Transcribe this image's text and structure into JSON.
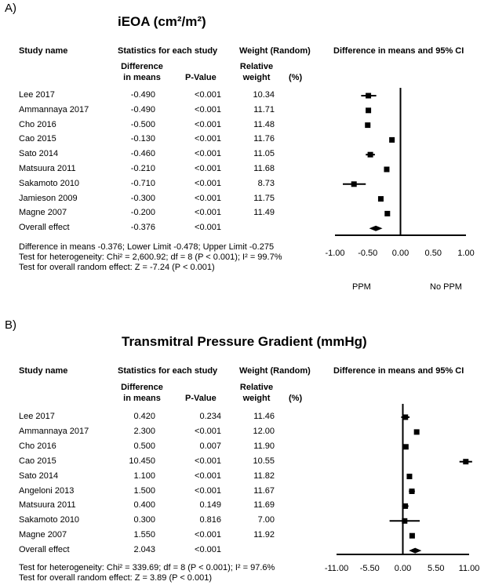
{
  "chart_data": [
    {
      "type": "forest",
      "panel_label": "A)",
      "title": "iEOA (cm²/m²)",
      "headers": {
        "study": "Study name",
        "stats": "Statistics for each study",
        "weight": "Weight (Random)",
        "plot": "Difference in means and 95% CI",
        "diff": "Difference in means",
        "pvalue": "P-Value",
        "relweight": "Relative weight",
        "pct": "(%)"
      },
      "rows": [
        {
          "study": "Lee 2017",
          "diff": "-0.490",
          "p": "<0.001",
          "weight": "10.34",
          "est": -0.49,
          "lo": -0.6,
          "hi": -0.37
        },
        {
          "study": "Ammannaya 2017",
          "diff": "-0.490",
          "p": "<0.001",
          "weight": "11.71",
          "est": -0.49,
          "lo": -0.52,
          "hi": -0.46
        },
        {
          "study": "Cho 2016",
          "diff": "-0.500",
          "p": "<0.001",
          "weight": "11.48",
          "est": -0.5,
          "lo": -0.54,
          "hi": -0.46
        },
        {
          "study": "Cao 2015",
          "diff": "-0.130",
          "p": "<0.001",
          "weight": "11.76",
          "est": -0.13,
          "lo": -0.15,
          "hi": -0.11
        },
        {
          "study": "Sato 2014",
          "diff": "-0.460",
          "p": "<0.001",
          "weight": "11.05",
          "est": -0.46,
          "lo": -0.53,
          "hi": -0.39
        },
        {
          "study": "Matsuura 2011",
          "diff": "-0.210",
          "p": "<0.001",
          "weight": "11.68",
          "est": -0.21,
          "lo": -0.23,
          "hi": -0.19
        },
        {
          "study": "Sakamoto 2010",
          "diff": "-0.710",
          "p": "<0.001",
          "weight": "8.73",
          "est": -0.71,
          "lo": -0.88,
          "hi": -0.53
        },
        {
          "study": "Jamieson 2009",
          "diff": "-0.300",
          "p": "<0.001",
          "weight": "11.75",
          "est": -0.3,
          "lo": -0.32,
          "hi": -0.28
        },
        {
          "study": "Magne 2007",
          "diff": "-0.200",
          "p": "<0.001",
          "weight": "11.49",
          "est": -0.2,
          "lo": -0.23,
          "hi": -0.17
        }
      ],
      "overall": {
        "study": "Overall effect",
        "diff": "-0.376",
        "p": "<0.001",
        "est": -0.376,
        "lo": -0.478,
        "hi": -0.275
      },
      "xlim": [
        -1.0,
        1.0
      ],
      "xticks": [
        "-1.00",
        "-0.50",
        "0.00",
        "0.50",
        "1.00"
      ],
      "xtick_values": [
        -1.0,
        -0.5,
        0.0,
        0.5,
        1.0
      ],
      "favours_left": "PPM",
      "favours_right": "No PPM",
      "footer": [
        "Difference in means -0.376; Lower Limit -0.478; Upper Limit -0.275",
        "Test for heterogeneity: Chi² = 2,600.92; df = 8 (P < 0.001); I² = 99.7%",
        "Test for overall random effect: Z = -7.24 (P < 0.001)"
      ]
    },
    {
      "type": "forest",
      "panel_label": "B)",
      "title": "Transmitral Pressure Gradient (mmHg)",
      "headers": {
        "study": "Study name",
        "stats": "Statistics for each study",
        "weight": "Weight (Random)",
        "plot": "Difference in means and 95% CI",
        "diff": "Difference in means",
        "pvalue": "P-Value",
        "relweight": "Relative weight",
        "pct": "(%)"
      },
      "rows": [
        {
          "study": "Lee 2017",
          "diff": "0.420",
          "p": "0.234",
          "weight": "11.46",
          "est": 0.42,
          "lo": -0.27,
          "hi": 1.11
        },
        {
          "study": "Ammannaya 2017",
          "diff": "2.300",
          "p": "<0.001",
          "weight": "12.00",
          "est": 2.3,
          "lo": 2.1,
          "hi": 2.5
        },
        {
          "study": "Cho 2016",
          "diff": "0.500",
          "p": "0.007",
          "weight": "11.90",
          "est": 0.5,
          "lo": 0.14,
          "hi": 0.86
        },
        {
          "study": "Cao 2015",
          "diff": "10.450",
          "p": "<0.001",
          "weight": "10.55",
          "est": 10.45,
          "lo": 9.4,
          "hi": 11.5
        },
        {
          "study": "Sato 2014",
          "diff": "1.100",
          "p": "<0.001",
          "weight": "11.82",
          "est": 1.1,
          "lo": 0.8,
          "hi": 1.4
        },
        {
          "study": "Angeloni 2013",
          "diff": "1.500",
          "p": "<0.001",
          "weight": "11.67",
          "est": 1.5,
          "lo": 1.0,
          "hi": 2.0
        },
        {
          "study": "Matsuura 2011",
          "diff": "0.400",
          "p": "0.149",
          "weight": "11.69",
          "est": 0.4,
          "lo": -0.14,
          "hi": 0.94
        },
        {
          "study": "Sakamoto 2010",
          "diff": "0.300",
          "p": "0.816",
          "weight": "7.00",
          "est": 0.3,
          "lo": -2.2,
          "hi": 2.8
        },
        {
          "study": "Magne 2007",
          "diff": "1.550",
          "p": "<0.001",
          "weight": "11.92",
          "est": 1.55,
          "lo": 1.3,
          "hi": 1.8
        }
      ],
      "overall": {
        "study": "Overall effect",
        "diff": "2.043",
        "p": "<0.001",
        "est": 2.043,
        "lo": 1.0,
        "hi": 3.1
      },
      "xlim": [
        -11.0,
        11.0
      ],
      "xticks": [
        "-11.00",
        "-5.50",
        "0.00",
        "5.50",
        "11.00"
      ],
      "xtick_values": [
        -11.0,
        -5.5,
        0.0,
        5.5,
        11.0
      ],
      "footer": [
        "Test for heterogeneity: Chi² = 339.69; df = 8 (P < 0.001); I² = 97.6%",
        "Test for overall random effect: Z = 3.89 (P < 0.001)"
      ]
    }
  ]
}
